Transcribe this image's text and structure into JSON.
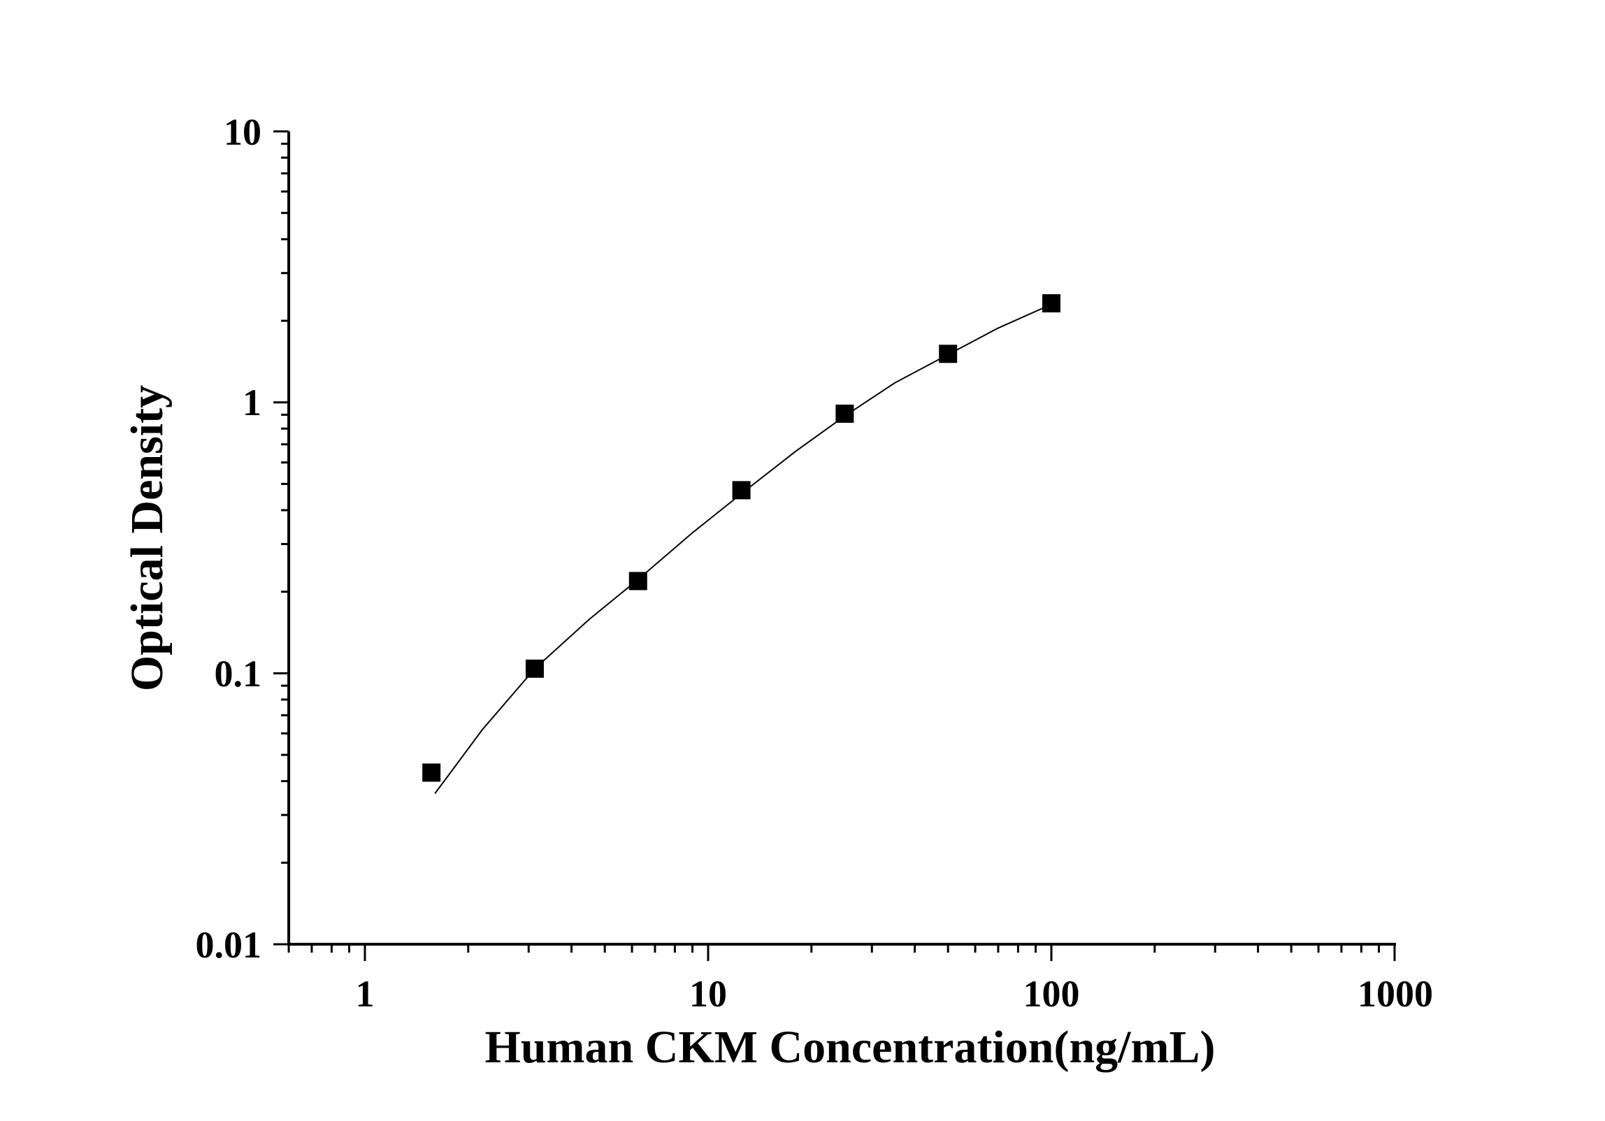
{
  "chart_data": {
    "type": "scatter",
    "xlabel": "Human CKM Concentration(ng/mL)",
    "ylabel": "Optical Density",
    "x_scale": "log",
    "y_scale": "log",
    "xlim": [
      0.6,
      1000
    ],
    "ylim": [
      0.01,
      10
    ],
    "x_ticks": [
      "1",
      "10",
      "100",
      "1000"
    ],
    "y_ticks": [
      "0.01",
      "0.1",
      "1",
      "10"
    ],
    "grid": false,
    "marker": "square",
    "color": "#000000",
    "points": {
      "x": [
        1.5625,
        3.125,
        6.25,
        12.5,
        25,
        50,
        100
      ],
      "y": [
        0.043,
        0.104,
        0.219,
        0.474,
        0.908,
        1.51,
        2.32
      ]
    },
    "fit_curve": {
      "x": [
        1.6,
        2.2,
        3.125,
        4.5,
        6.25,
        9,
        12.5,
        18,
        25,
        35,
        50,
        70,
        100
      ],
      "y": [
        0.036,
        0.062,
        0.104,
        0.158,
        0.222,
        0.33,
        0.46,
        0.66,
        0.89,
        1.18,
        1.5,
        1.88,
        2.3
      ]
    }
  }
}
